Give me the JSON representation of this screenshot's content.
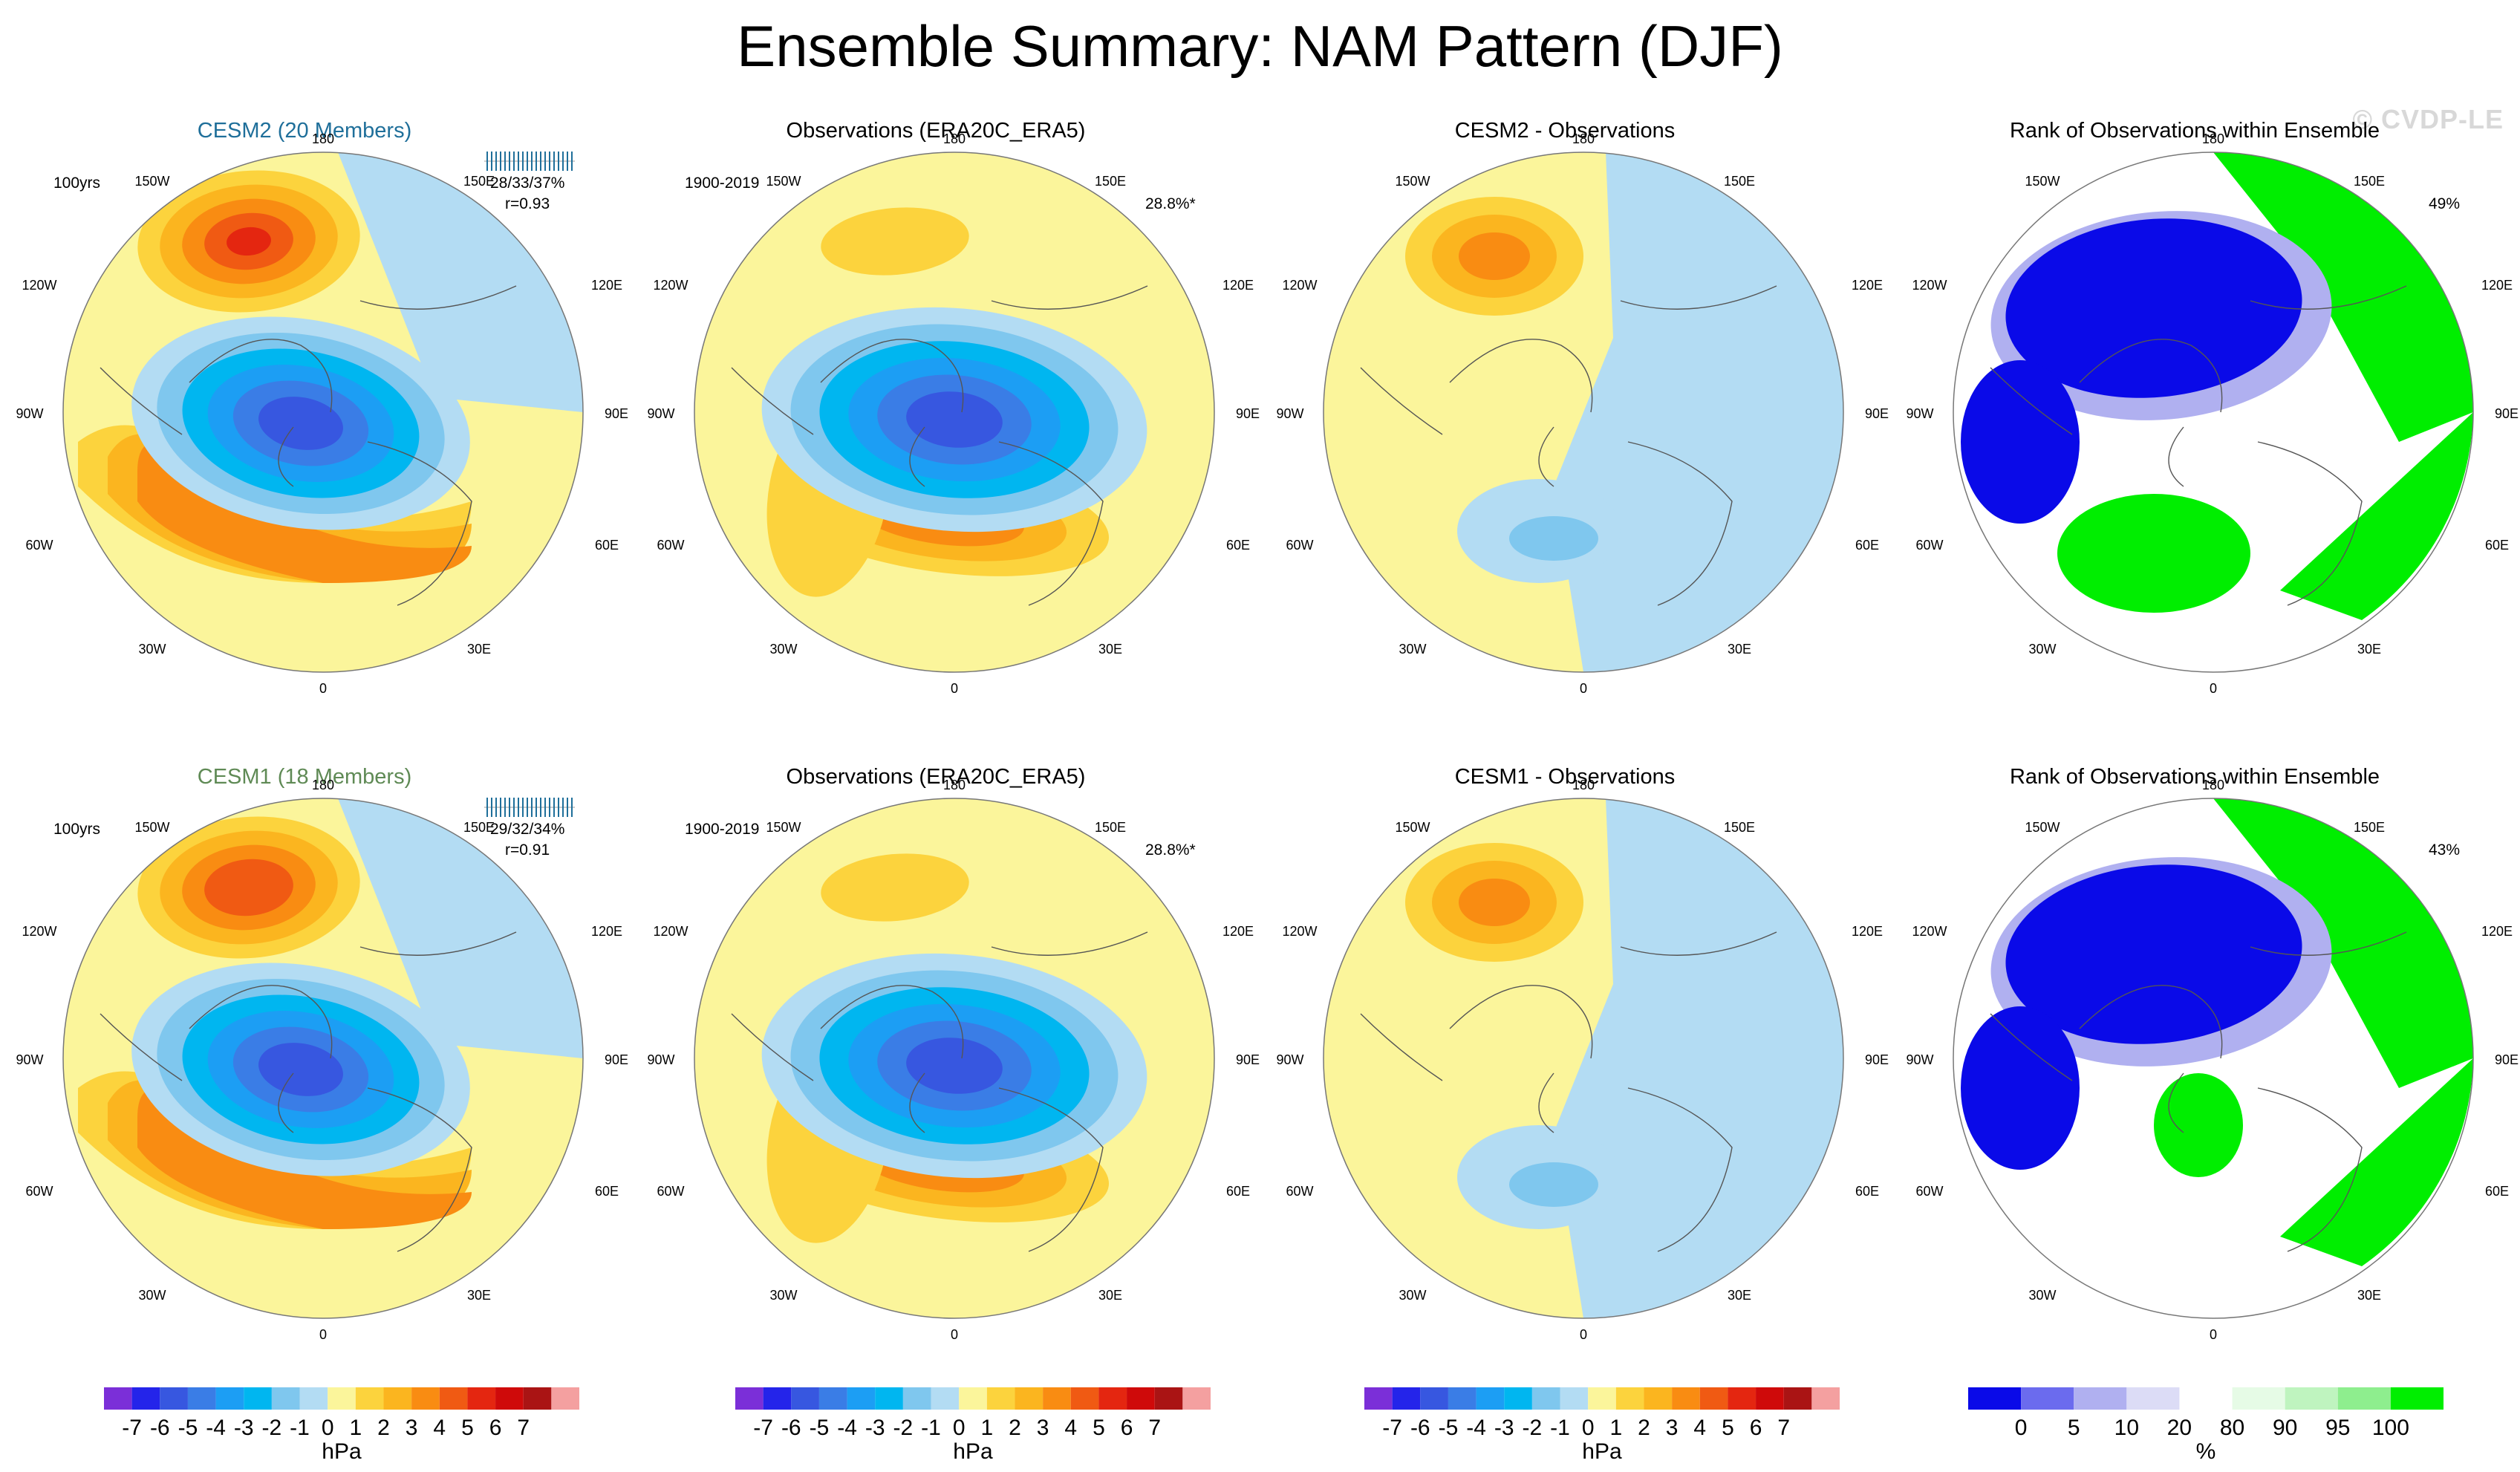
{
  "title": "Ensemble Summary: NAM Pattern (DJF)",
  "watermark": "© CVDP-LE",
  "lon_labels": {
    "top": "180",
    "bottom": "0",
    "left_top": "150W",
    "left_upper": "120W",
    "left_mid": "90W",
    "left_lower": "60W",
    "left_bottom": "30W",
    "right_top": "150E",
    "right_upper": "120E",
    "right_mid": "90E",
    "right_lower": "60E",
    "right_bottom": "30E"
  },
  "colors": {
    "diverging": [
      "#7b2fd8",
      "#2424ea",
      "#3757e0",
      "#3a7de6",
      "#1c9ef4",
      "#00b6f0",
      "#7fc7ee",
      "#b3dcf3",
      "#fbf59b",
      "#fcd33d",
      "#fbb51f",
      "#f98c12",
      "#f05a13",
      "#e42610",
      "#cf0a0a",
      "#aa1414",
      "#f4a0a0"
    ],
    "rank": [
      "#0a0ae8",
      "#6b6bee",
      "#b0b0f0",
      "#dcdcf6",
      "#ffffff",
      "#e6fbe6",
      "#bff4bf",
      "#8eee8e",
      "#00ee00"
    ]
  },
  "row_cesm2": {
    "model_title": "CESM2 (20 Members)",
    "period": "100yrs",
    "pct_stats": "28/33/37%",
    "corr": "r=0.93",
    "obs_title": "Observations (ERA20C_ERA5)",
    "obs_period": "1900-2019",
    "obs_pct": "28.8%*",
    "diff_title": "CESM2 - Observations",
    "rank_title": "Rank of Observations within Ensemble",
    "rank_pct": "49%"
  },
  "row_cesm1": {
    "model_title": "CESM1 (18 Members)",
    "period": "100yrs",
    "pct_stats": "29/32/34%",
    "corr": "r=0.91",
    "obs_title": "Observations (ERA20C_ERA5)",
    "obs_period": "1900-2019",
    "obs_pct": "28.8%*",
    "diff_title": "CESM1 - Observations",
    "rank_title": "Rank of Observations within Ensemble",
    "rank_pct": "43%"
  },
  "colorbar": {
    "labels": [
      "-7",
      "-6",
      "-5",
      "-4",
      "-3",
      "-2",
      "-1",
      "0",
      "1",
      "2",
      "3",
      "4",
      "5",
      "6",
      "7"
    ],
    "unit": "hPa",
    "rank_labels": [
      "0",
      "5",
      "10",
      "20",
      "80",
      "90",
      "95",
      "100"
    ],
    "rank_unit": "%"
  },
  "chart_data": [
    {
      "type": "heatmap",
      "title": "CESM2 (20 Members)",
      "projection": "north polar stereographic",
      "units": "hPa",
      "levels": [
        -7,
        -6,
        -5,
        -4,
        -3,
        -2,
        -1,
        0,
        1,
        2,
        3,
        4,
        5,
        6,
        7
      ],
      "pattern": {
        "arctic_min": -6,
        "north_pacific_max": 5,
        "north_atlantic_max": 3
      }
    },
    {
      "type": "heatmap",
      "title": "Observations (ERA20C_ERA5)",
      "projection": "north polar stereographic",
      "units": "hPa",
      "pattern": {
        "arctic_min": -6,
        "north_pacific_max": 2,
        "north_atlantic_max": 3
      }
    },
    {
      "type": "heatmap",
      "title": "CESM2 - Observations",
      "projection": "north polar stereographic",
      "units": "hPa",
      "pattern": {
        "north_pacific_max": 3,
        "atlantic_min": -2
      }
    },
    {
      "type": "heatmap",
      "title": "Rank of Observations within Ensemble",
      "projection": "north polar stereographic",
      "units": "%",
      "levels": [
        0,
        5,
        10,
        20,
        80,
        90,
        95,
        100
      ]
    },
    {
      "type": "heatmap",
      "title": "CESM1 (18 Members)",
      "projection": "north polar stereographic",
      "units": "hPa",
      "pattern": {
        "arctic_min": -6,
        "north_pacific_max": 4,
        "north_atlantic_max": 2
      }
    },
    {
      "type": "heatmap",
      "title": "Observations (ERA20C_ERA5)",
      "projection": "north polar stereographic",
      "units": "hPa",
      "pattern": {
        "arctic_min": -6,
        "north_pacific_max": 2,
        "north_atlantic_max": 3
      }
    },
    {
      "type": "heatmap",
      "title": "CESM1 - Observations",
      "projection": "north polar stereographic",
      "units": "hPa",
      "pattern": {
        "north_pacific_max": 3,
        "atlantic_min": -2
      }
    },
    {
      "type": "heatmap",
      "title": "Rank of Observations within Ensemble",
      "projection": "north polar stereographic",
      "units": "%",
      "levels": [
        0,
        5,
        10,
        20,
        80,
        90,
        95,
        100
      ]
    }
  ]
}
